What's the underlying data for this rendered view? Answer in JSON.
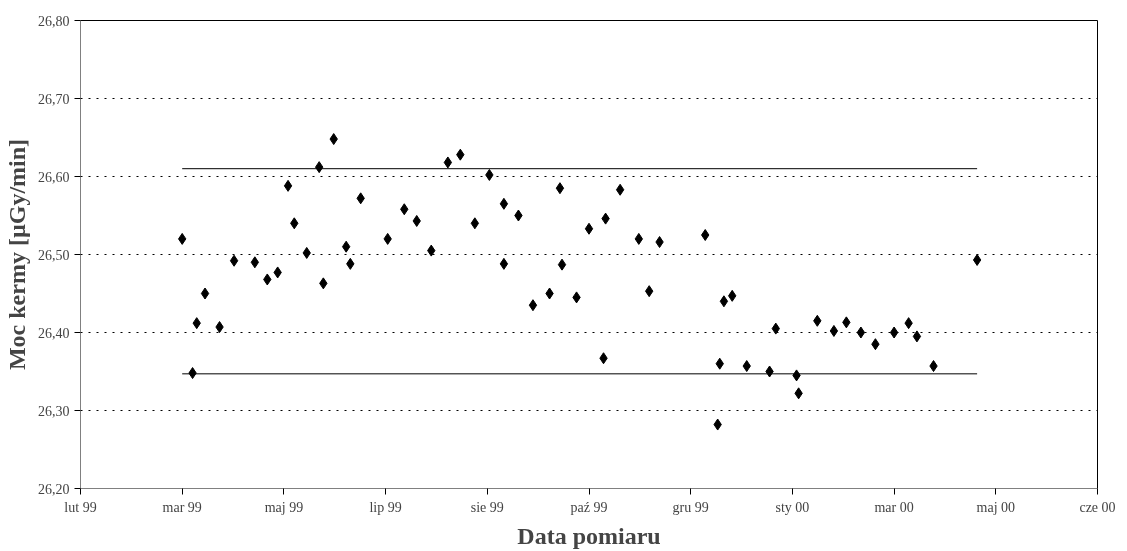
{
  "chart_data": {
    "type": "scatter",
    "xlabel": "Data pomiaru",
    "ylabel": "Moc kermy [µGy/min]",
    "xlim": [
      "1999-02-10",
      "2000-06-14"
    ],
    "xticks": [
      {
        "value": "1999-02-10",
        "label": "lut 99"
      },
      {
        "value": "1999-03-31",
        "label": "mar 99"
      },
      {
        "value": "1999-05-19",
        "label": "maj 99"
      },
      {
        "value": "1999-07-07",
        "label": "lip 99"
      },
      {
        "value": "1999-08-25",
        "label": "sie 99"
      },
      {
        "value": "1999-10-13",
        "label": "paź 99"
      },
      {
        "value": "1999-12-01",
        "label": "gru 99"
      },
      {
        "value": "2000-01-19",
        "label": "sty 00"
      },
      {
        "value": "2000-03-08",
        "label": "mar 00"
      },
      {
        "value": "2000-04-26",
        "label": "maj 00"
      },
      {
        "value": "2000-06-14",
        "label": "cze 00"
      }
    ],
    "ylim": [
      26.2,
      26.8
    ],
    "yticks": [
      {
        "value": 26.2,
        "label": "26,20"
      },
      {
        "value": 26.3,
        "label": "26,30"
      },
      {
        "value": 26.4,
        "label": "26,40"
      },
      {
        "value": 26.5,
        "label": "26,50"
      },
      {
        "value": 26.6,
        "label": "26,60"
      },
      {
        "value": 26.7,
        "label": "26,70"
      },
      {
        "value": 26.8,
        "label": "26,80"
      }
    ],
    "grid": "y",
    "series": [
      {
        "marker": "diamond",
        "color": "#000000",
        "x": [
          "1999-03-31",
          "1999-04-05",
          "1999-04-07",
          "1999-04-11",
          "1999-04-18",
          "1999-04-25",
          "1999-05-05",
          "1999-05-11",
          "1999-05-16",
          "1999-05-21",
          "1999-05-24",
          "1999-05-30",
          "1999-06-05",
          "1999-06-07",
          "1999-06-12",
          "1999-06-18",
          "1999-06-20",
          "1999-06-25",
          "1999-07-08",
          "1999-07-16",
          "1999-07-22",
          "1999-07-29",
          "1999-08-06",
          "1999-08-12",
          "1999-08-19",
          "1999-08-26",
          "1999-09-02",
          "1999-09-02",
          "1999-09-09",
          "1999-09-16",
          "1999-09-24",
          "1999-09-29",
          "1999-09-30",
          "1999-10-07",
          "1999-10-13",
          "1999-10-20",
          "1999-10-21",
          "1999-10-28",
          "1999-11-06",
          "1999-11-11",
          "1999-11-16",
          "1999-12-08",
          "1999-12-14",
          "1999-12-15",
          "1999-12-17",
          "1999-12-21",
          "1999-12-28",
          "2000-01-08",
          "2000-01-11",
          "2000-01-21",
          "2000-01-22",
          "2000-01-31",
          "2000-02-08",
          "2000-02-14",
          "2000-02-21",
          "2000-02-28",
          "2000-03-08",
          "2000-03-15",
          "2000-03-19",
          "2000-03-27",
          "2000-04-17"
        ],
        "values": [
          26.52,
          26.348,
          26.412,
          26.45,
          26.407,
          26.492,
          26.49,
          26.468,
          26.477,
          26.588,
          26.54,
          26.502,
          26.612,
          26.463,
          26.648,
          26.51,
          26.488,
          26.572,
          26.52,
          26.558,
          26.543,
          26.505,
          26.618,
          26.628,
          26.54,
          26.602,
          26.565,
          26.488,
          26.55,
          26.435,
          26.45,
          26.585,
          26.487,
          26.445,
          26.533,
          26.367,
          26.546,
          26.583,
          26.52,
          26.453,
          26.516,
          26.525,
          26.282,
          26.36,
          26.44,
          26.447,
          26.357,
          26.35,
          26.405,
          26.345,
          26.322,
          26.415,
          26.402,
          26.413,
          26.4,
          26.385,
          26.4,
          26.412,
          26.395,
          26.357,
          26.493
        ]
      },
      {
        "type": "line",
        "marker": "none",
        "color": "#000000",
        "x": [
          "1999-03-31",
          "2000-04-17"
        ],
        "values": [
          26.61,
          26.61
        ]
      },
      {
        "type": "line",
        "marker": "none",
        "color": "#000000",
        "x": [
          "1999-03-31",
          "2000-04-17"
        ],
        "values": [
          26.347,
          26.347
        ]
      }
    ]
  }
}
